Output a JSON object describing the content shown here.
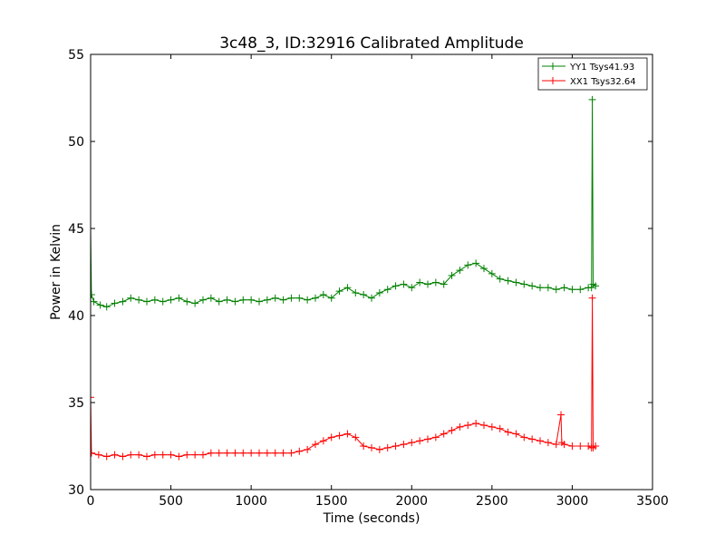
{
  "chart_data": {
    "type": "line",
    "title": "3c48_3, ID:32916 Calibrated Amplitude",
    "xlabel": "Time (seconds)",
    "ylabel": "Power in Kelvin",
    "xlim": [
      0,
      3500
    ],
    "ylim": [
      30,
      55
    ],
    "xticks": [
      0,
      500,
      1000,
      1500,
      2000,
      2500,
      3000,
      3500
    ],
    "yticks": [
      30,
      35,
      40,
      45,
      50,
      55
    ],
    "grid": false,
    "legend_position": "top-right",
    "marker": "plus",
    "series": [
      {
        "name": "YY1 Tsys41.93",
        "color": "#008000",
        "points": [
          [
            0,
            45.0
          ],
          [
            5,
            41.2
          ],
          [
            20,
            40.8
          ],
          [
            60,
            40.6
          ],
          [
            100,
            40.5
          ],
          [
            150,
            40.7
          ],
          [
            200,
            40.8
          ],
          [
            250,
            41.0
          ],
          [
            300,
            40.9
          ],
          [
            350,
            40.8
          ],
          [
            400,
            40.9
          ],
          [
            450,
            40.8
          ],
          [
            500,
            40.9
          ],
          [
            550,
            41.0
          ],
          [
            600,
            40.8
          ],
          [
            650,
            40.7
          ],
          [
            700,
            40.9
          ],
          [
            750,
            41.0
          ],
          [
            800,
            40.8
          ],
          [
            850,
            40.9
          ],
          [
            900,
            40.8
          ],
          [
            950,
            40.9
          ],
          [
            1000,
            40.9
          ],
          [
            1050,
            40.8
          ],
          [
            1100,
            40.9
          ],
          [
            1150,
            41.0
          ],
          [
            1200,
            40.9
          ],
          [
            1250,
            41.0
          ],
          [
            1300,
            41.0
          ],
          [
            1350,
            40.9
          ],
          [
            1400,
            41.0
          ],
          [
            1450,
            41.2
          ],
          [
            1500,
            41.0
          ],
          [
            1550,
            41.4
          ],
          [
            1600,
            41.6
          ],
          [
            1650,
            41.3
          ],
          [
            1700,
            41.2
          ],
          [
            1750,
            41.0
          ],
          [
            1800,
            41.3
          ],
          [
            1850,
            41.5
          ],
          [
            1900,
            41.7
          ],
          [
            1950,
            41.8
          ],
          [
            2000,
            41.6
          ],
          [
            2050,
            41.9
          ],
          [
            2100,
            41.8
          ],
          [
            2150,
            41.9
          ],
          [
            2200,
            41.8
          ],
          [
            2250,
            42.3
          ],
          [
            2300,
            42.6
          ],
          [
            2350,
            42.9
          ],
          [
            2400,
            43.0
          ],
          [
            2450,
            42.7
          ],
          [
            2500,
            42.4
          ],
          [
            2550,
            42.1
          ],
          [
            2600,
            42.0
          ],
          [
            2650,
            41.9
          ],
          [
            2700,
            41.8
          ],
          [
            2750,
            41.7
          ],
          [
            2800,
            41.6
          ],
          [
            2850,
            41.6
          ],
          [
            2900,
            41.5
          ],
          [
            2950,
            41.6
          ],
          [
            3000,
            41.5
          ],
          [
            3050,
            41.5
          ],
          [
            3100,
            41.6
          ],
          [
            3120,
            41.6
          ],
          [
            3125,
            52.4
          ],
          [
            3130,
            41.8
          ],
          [
            3145,
            41.7
          ]
        ]
      },
      {
        "name": "XX1 Tsys32.64",
        "color": "#ff0000",
        "points": [
          [
            0,
            35.3
          ],
          [
            5,
            32.1
          ],
          [
            50,
            32.0
          ],
          [
            100,
            31.9
          ],
          [
            150,
            32.0
          ],
          [
            200,
            31.9
          ],
          [
            250,
            32.0
          ],
          [
            300,
            32.0
          ],
          [
            350,
            31.9
          ],
          [
            400,
            32.0
          ],
          [
            450,
            32.0
          ],
          [
            500,
            32.0
          ],
          [
            550,
            31.9
          ],
          [
            600,
            32.0
          ],
          [
            650,
            32.0
          ],
          [
            700,
            32.0
          ],
          [
            750,
            32.1
          ],
          [
            800,
            32.1
          ],
          [
            850,
            32.1
          ],
          [
            900,
            32.1
          ],
          [
            950,
            32.1
          ],
          [
            1000,
            32.1
          ],
          [
            1050,
            32.1
          ],
          [
            1100,
            32.1
          ],
          [
            1150,
            32.1
          ],
          [
            1200,
            32.1
          ],
          [
            1250,
            32.1
          ],
          [
            1300,
            32.2
          ],
          [
            1350,
            32.3
          ],
          [
            1400,
            32.6
          ],
          [
            1450,
            32.8
          ],
          [
            1500,
            33.0
          ],
          [
            1550,
            33.1
          ],
          [
            1600,
            33.2
          ],
          [
            1650,
            33.0
          ],
          [
            1700,
            32.5
          ],
          [
            1750,
            32.4
          ],
          [
            1800,
            32.3
          ],
          [
            1850,
            32.4
          ],
          [
            1900,
            32.5
          ],
          [
            1950,
            32.6
          ],
          [
            2000,
            32.7
          ],
          [
            2050,
            32.8
          ],
          [
            2100,
            32.9
          ],
          [
            2150,
            33.0
          ],
          [
            2200,
            33.2
          ],
          [
            2250,
            33.4
          ],
          [
            2300,
            33.6
          ],
          [
            2350,
            33.7
          ],
          [
            2400,
            33.8
          ],
          [
            2450,
            33.7
          ],
          [
            2500,
            33.6
          ],
          [
            2550,
            33.5
          ],
          [
            2600,
            33.3
          ],
          [
            2650,
            33.2
          ],
          [
            2700,
            33.0
          ],
          [
            2750,
            32.9
          ],
          [
            2800,
            32.8
          ],
          [
            2850,
            32.7
          ],
          [
            2900,
            32.6
          ],
          [
            2930,
            34.3
          ],
          [
            2935,
            32.7
          ],
          [
            2950,
            32.6
          ],
          [
            3000,
            32.5
          ],
          [
            3050,
            32.5
          ],
          [
            3100,
            32.5
          ],
          [
            3120,
            32.4
          ],
          [
            3125,
            41.0
          ],
          [
            3130,
            32.4
          ],
          [
            3145,
            32.5
          ]
        ]
      }
    ]
  }
}
